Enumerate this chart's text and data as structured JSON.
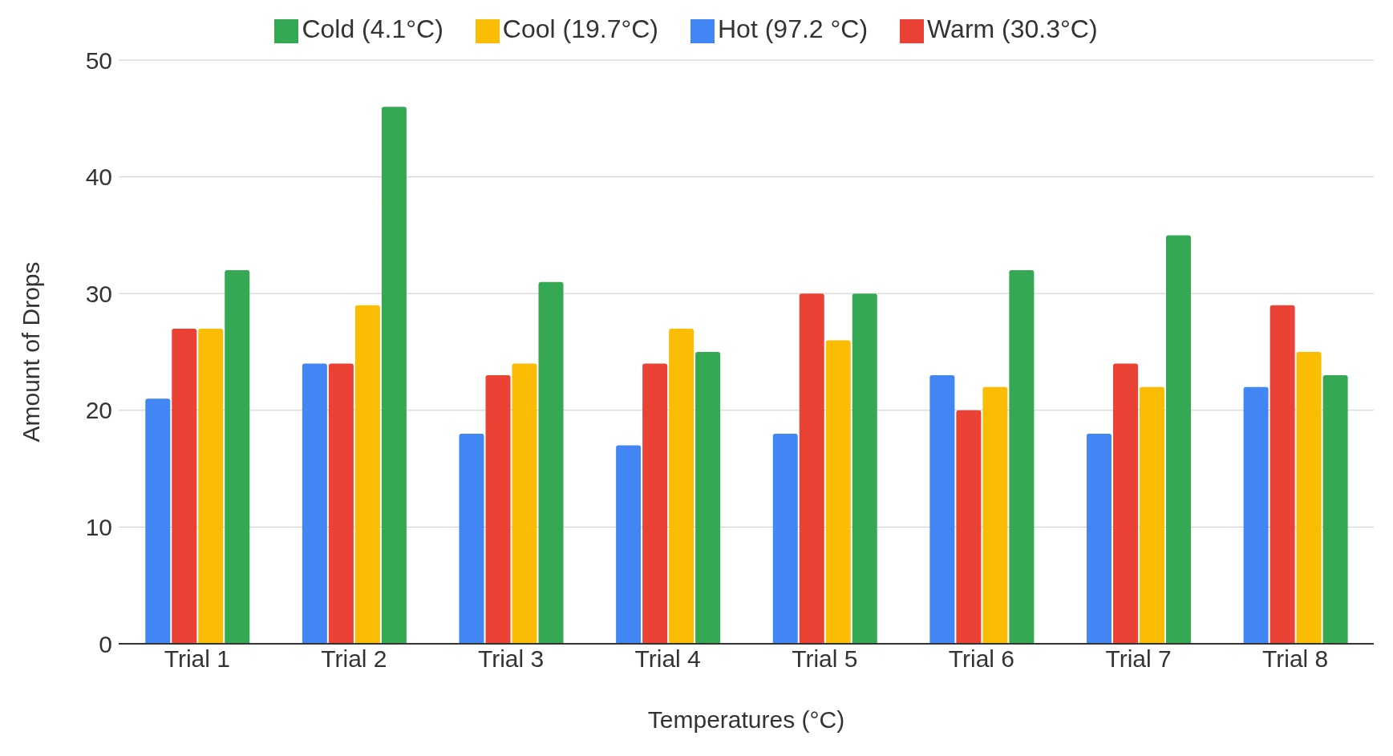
{
  "chart_data": {
    "type": "bar",
    "xlabel": "Temperatures (°C)",
    "ylabel": "Amount of Drops",
    "categories": [
      "Trial 1",
      "Trial 2",
      "Trial 3",
      "Trial 4",
      "Trial 5",
      "Trial 6",
      "Trial 7",
      "Trial 8"
    ],
    "series": [
      {
        "name": "Hot (97.2 °C)",
        "color": "#4285f4",
        "values": [
          21,
          24,
          18,
          17,
          18,
          23,
          18,
          22
        ]
      },
      {
        "name": "Warm (30.3°C)",
        "color": "#ea4335",
        "values": [
          27,
          24,
          23,
          24,
          30,
          20,
          24,
          29
        ]
      },
      {
        "name": "Cool (19.7°C)",
        "color": "#fbbc04",
        "values": [
          27,
          29,
          24,
          27,
          26,
          22,
          22,
          25
        ]
      },
      {
        "name": "Cold (4.1°C)",
        "color": "#34a853",
        "values": [
          32,
          46,
          31,
          25,
          30,
          32,
          35,
          23
        ]
      }
    ],
    "ylim": [
      0,
      50
    ],
    "yticks": [
      0,
      10,
      20,
      30,
      40,
      50
    ],
    "grid": "y",
    "legend": "top"
  }
}
